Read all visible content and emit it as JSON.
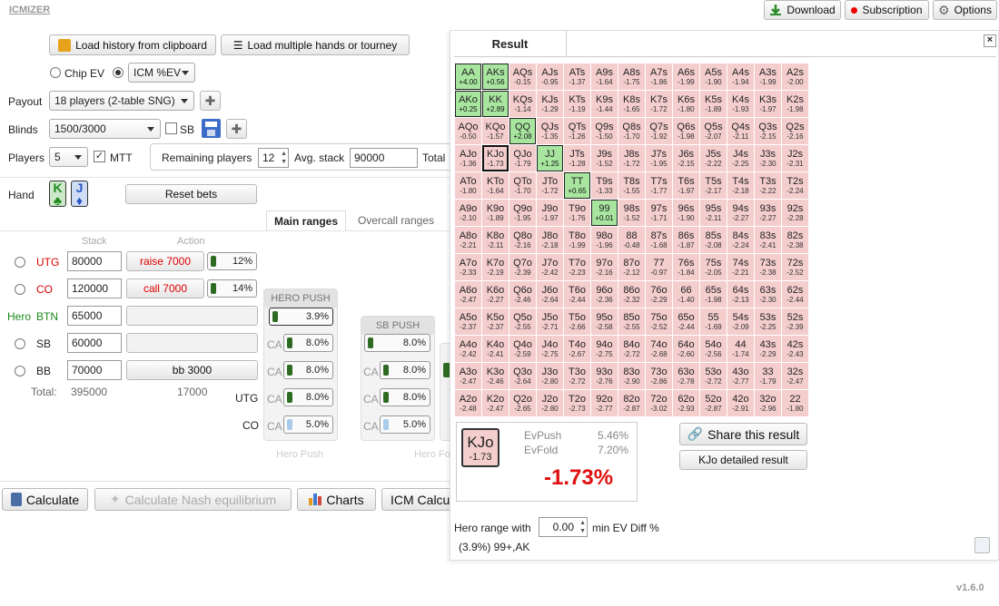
{
  "app": {
    "title": "ICMIZER",
    "version": "v1.6.0"
  },
  "topbar": {
    "download": "Download",
    "subscription": "Subscription",
    "options": "Options"
  },
  "actions": {
    "load_history": "Load history from clipboard",
    "load_multiple": "Load multiple hands or tourney"
  },
  "mode": {
    "chip_ev": "Chip EV",
    "icm_select": "ICM %EV"
  },
  "payout": {
    "label": "Payout",
    "value": "18 players (2-table SNG)"
  },
  "blinds": {
    "label": "Blinds",
    "value": "1500/3000",
    "sb_label": "SB"
  },
  "players": {
    "label": "Players",
    "value": "5",
    "mtt_label": "MTT",
    "remaining_label": "Remaining players",
    "remaining_value": "12",
    "avg_label": "Avg. stack",
    "avg_value": "90000",
    "total_label": "Total"
  },
  "hand": {
    "label": "Hand",
    "card1": "K",
    "card2": "J",
    "reset": "Reset bets"
  },
  "tabs": {
    "main": "Main ranges",
    "overcall": "Overcall ranges"
  },
  "table": {
    "stack_header": "Stack",
    "action_header": "Action",
    "rows": [
      {
        "pos": "UTG",
        "stack": "80000",
        "action": "raise 7000",
        "pct": "12%",
        "hero": ""
      },
      {
        "pos": "CO",
        "stack": "120000",
        "action": "call 7000",
        "pct": "14%",
        "hero": ""
      },
      {
        "pos": "BTN",
        "stack": "65000",
        "action": "",
        "pct": "",
        "hero": "Hero"
      },
      {
        "pos": "SB",
        "stack": "60000",
        "action": "",
        "pct": "",
        "hero": ""
      },
      {
        "pos": "BB",
        "stack": "70000",
        "action": "bb 3000",
        "pct": "",
        "hero": ""
      }
    ],
    "total_label": "Total:",
    "total_stack": "395000",
    "total_action": "17000"
  },
  "hero_push": {
    "title": "HERO PUSH",
    "value": "3.9%",
    "ca_label": "CA",
    "ca_values": [
      "8.0%",
      "8.0%",
      "8.0%",
      "5.0%"
    ],
    "footer": "Hero Push"
  },
  "sb_push": {
    "title": "SB PUSH",
    "value": "8.0%",
    "ca_label": "CA",
    "ca_values": [
      "8.0%",
      "8.0%",
      "5.0%"
    ],
    "footer": "Hero Fo"
  },
  "ca_rows": {
    "utg": "UTG",
    "co": "CO"
  },
  "bottom": {
    "calculate": "Calculate",
    "nash": "Calculate Nash equilibrium",
    "charts": "Charts",
    "icm_calc": "ICM Calcu"
  },
  "result": {
    "title": "Result",
    "hand": "KJo",
    "hand_ev": "-1.73",
    "evpush_label": "EvPush",
    "evpush_value": "5.46%",
    "evfold_label": "EvFold",
    "evfold_value": "7.20%",
    "diff": "-1.73%",
    "share": "Share this result",
    "detailed": "KJo detailed result",
    "hero_range_label": "Hero range with",
    "hero_range_value": "0.00",
    "hero_range_suffix": "min EV Diff %",
    "range_summary": "(3.9%) 99+,AK"
  },
  "grid": [
    [
      [
        "AA",
        "+4.00",
        1
      ],
      [
        "AKs",
        "+0.56",
        1
      ],
      [
        "AQs",
        "-0.15",
        0
      ],
      [
        "AJs",
        "-0.95",
        0
      ],
      [
        "ATs",
        "-1.37",
        0
      ],
      [
        "A9s",
        "-1.64",
        0
      ],
      [
        "A8s",
        "-1.75",
        0
      ],
      [
        "A7s",
        "-1.86",
        0
      ],
      [
        "A6s",
        "-1.99",
        0
      ],
      [
        "A5s",
        "-1.90",
        0
      ],
      [
        "A4s",
        "-1.94",
        0
      ],
      [
        "A3s",
        "-1.99",
        0
      ],
      [
        "A2s",
        "-2.00",
        0
      ]
    ],
    [
      [
        "AKo",
        "+0.25",
        1
      ],
      [
        "KK",
        "+2.89",
        1
      ],
      [
        "KQs",
        "-1.14",
        0
      ],
      [
        "KJs",
        "-1.29",
        0
      ],
      [
        "KTs",
        "-1.19",
        0
      ],
      [
        "K9s",
        "-1.44",
        0
      ],
      [
        "K8s",
        "-1.65",
        0
      ],
      [
        "K7s",
        "-1.72",
        0
      ],
      [
        "K6s",
        "-1.80",
        0
      ],
      [
        "K5s",
        "-1.89",
        0
      ],
      [
        "K4s",
        "-1.93",
        0
      ],
      [
        "K3s",
        "-1.97",
        0
      ],
      [
        "K2s",
        "-1.98",
        0
      ]
    ],
    [
      [
        "AQo",
        "-0.50",
        0
      ],
      [
        "KQo",
        "-1.57",
        0
      ],
      [
        "QQ",
        "+2.08",
        1
      ],
      [
        "QJs",
        "-1.35",
        0
      ],
      [
        "QTs",
        "-1.26",
        0
      ],
      [
        "Q9s",
        "-1.50",
        0
      ],
      [
        "Q8s",
        "-1.70",
        0
      ],
      [
        "Q7s",
        "-1.92",
        0
      ],
      [
        "Q6s",
        "-1.98",
        0
      ],
      [
        "Q5s",
        "-2.07",
        0
      ],
      [
        "Q4s",
        "-2.11",
        0
      ],
      [
        "Q3s",
        "-2.15",
        0
      ],
      [
        "Q2s",
        "-2.16",
        0
      ]
    ],
    [
      [
        "AJo",
        "-1.36",
        0
      ],
      [
        "KJo",
        "-1.73",
        2
      ],
      [
        "QJo",
        "-1.79",
        0
      ],
      [
        "JJ",
        "+1.25",
        1
      ],
      [
        "JTs",
        "-1.28",
        0
      ],
      [
        "J9s",
        "-1.52",
        0
      ],
      [
        "J8s",
        "-1.72",
        0
      ],
      [
        "J7s",
        "-1.95",
        0
      ],
      [
        "J6s",
        "-2.15",
        0
      ],
      [
        "J5s",
        "-2.22",
        0
      ],
      [
        "J4s",
        "-2.25",
        0
      ],
      [
        "J3s",
        "-2.30",
        0
      ],
      [
        "J2s",
        "-2.31",
        0
      ]
    ],
    [
      [
        "ATo",
        "-1.80",
        0
      ],
      [
        "KTo",
        "-1.64",
        0
      ],
      [
        "QTo",
        "-1.70",
        0
      ],
      [
        "JTo",
        "-1.72",
        0
      ],
      [
        "TT",
        "+0.65",
        1
      ],
      [
        "T9s",
        "-1.33",
        0
      ],
      [
        "T8s",
        "-1.55",
        0
      ],
      [
        "T7s",
        "-1.77",
        0
      ],
      [
        "T6s",
        "-1.97",
        0
      ],
      [
        "T5s",
        "-2.17",
        0
      ],
      [
        "T4s",
        "-2.18",
        0
      ],
      [
        "T3s",
        "-2.22",
        0
      ],
      [
        "T2s",
        "-2.24",
        0
      ]
    ],
    [
      [
        "A9o",
        "-2.10",
        0
      ],
      [
        "K9o",
        "-1.89",
        0
      ],
      [
        "Q9o",
        "-1.95",
        0
      ],
      [
        "J9o",
        "-1.97",
        0
      ],
      [
        "T9o",
        "-1.76",
        0
      ],
      [
        "99",
        "+0.01",
        1
      ],
      [
        "98s",
        "-1.52",
        0
      ],
      [
        "97s",
        "-1.71",
        0
      ],
      [
        "96s",
        "-1.90",
        0
      ],
      [
        "95s",
        "-2.11",
        0
      ],
      [
        "94s",
        "-2.27",
        0
      ],
      [
        "93s",
        "-2.27",
        0
      ],
      [
        "92s",
        "-2.28",
        0
      ]
    ],
    [
      [
        "A8o",
        "-2.21",
        0
      ],
      [
        "K8o",
        "-2.11",
        0
      ],
      [
        "Q8o",
        "-2.16",
        0
      ],
      [
        "J8o",
        "-2.18",
        0
      ],
      [
        "T8o",
        "-1.99",
        0
      ],
      [
        "98o",
        "-1.96",
        0
      ],
      [
        "88",
        "-0.48",
        0
      ],
      [
        "87s",
        "-1.68",
        0
      ],
      [
        "86s",
        "-1.87",
        0
      ],
      [
        "85s",
        "-2.08",
        0
      ],
      [
        "84s",
        "-2.24",
        0
      ],
      [
        "83s",
        "-2.41",
        0
      ],
      [
        "82s",
        "-2.38",
        0
      ]
    ],
    [
      [
        "A7o",
        "-2.33",
        0
      ],
      [
        "K7o",
        "-2.19",
        0
      ],
      [
        "Q7o",
        "-2.39",
        0
      ],
      [
        "J7o",
        "-2.42",
        0
      ],
      [
        "T7o",
        "-2.23",
        0
      ],
      [
        "97o",
        "-2.16",
        0
      ],
      [
        "87o",
        "-2.12",
        0
      ],
      [
        "77",
        "-0.97",
        0
      ],
      [
        "76s",
        "-1.84",
        0
      ],
      [
        "75s",
        "-2.05",
        0
      ],
      [
        "74s",
        "-2.21",
        0
      ],
      [
        "73s",
        "-2.38",
        0
      ],
      [
        "72s",
        "-2.52",
        0
      ]
    ],
    [
      [
        "A6o",
        "-2.47",
        0
      ],
      [
        "K6o",
        "-2.27",
        0
      ],
      [
        "Q6o",
        "-2.46",
        0
      ],
      [
        "J6o",
        "-2.64",
        0
      ],
      [
        "T6o",
        "-2.44",
        0
      ],
      [
        "96o",
        "-2.36",
        0
      ],
      [
        "86o",
        "-2.32",
        0
      ],
      [
        "76o",
        "-2.29",
        0
      ],
      [
        "66",
        "-1.40",
        0
      ],
      [
        "65s",
        "-1.98",
        0
      ],
      [
        "64s",
        "-2.13",
        0
      ],
      [
        "63s",
        "-2.30",
        0
      ],
      [
        "62s",
        "-2.44",
        0
      ]
    ],
    [
      [
        "A5o",
        "-2.37",
        0
      ],
      [
        "K5o",
        "-2.37",
        0
      ],
      [
        "Q5o",
        "-2.55",
        0
      ],
      [
        "J5o",
        "-2.71",
        0
      ],
      [
        "T5o",
        "-2.66",
        0
      ],
      [
        "95o",
        "-2.58",
        0
      ],
      [
        "85o",
        "-2.55",
        0
      ],
      [
        "75o",
        "-2.52",
        0
      ],
      [
        "65o",
        "-2.44",
        0
      ],
      [
        "55",
        "-1.69",
        0
      ],
      [
        "54s",
        "-2.09",
        0
      ],
      [
        "53s",
        "-2.25",
        0
      ],
      [
        "52s",
        "-2.39",
        0
      ]
    ],
    [
      [
        "A4o",
        "-2.42",
        0
      ],
      [
        "K4o",
        "-2.41",
        0
      ],
      [
        "Q4o",
        "-2.59",
        0
      ],
      [
        "J4o",
        "-2.75",
        0
      ],
      [
        "T4o",
        "-2.67",
        0
      ],
      [
        "94o",
        "-2.75",
        0
      ],
      [
        "84o",
        "-2.72",
        0
      ],
      [
        "74o",
        "-2.68",
        0
      ],
      [
        "64o",
        "-2.60",
        0
      ],
      [
        "54o",
        "-2.56",
        0
      ],
      [
        "44",
        "-1.74",
        0
      ],
      [
        "43s",
        "-2.29",
        0
      ],
      [
        "42s",
        "-2.43",
        0
      ]
    ],
    [
      [
        "A3o",
        "-2.47",
        0
      ],
      [
        "K3o",
        "-2.46",
        0
      ],
      [
        "Q3o",
        "-2.64",
        0
      ],
      [
        "J3o",
        "-2.80",
        0
      ],
      [
        "T3o",
        "-2.72",
        0
      ],
      [
        "93o",
        "-2.76",
        0
      ],
      [
        "83o",
        "-2.90",
        0
      ],
      [
        "73o",
        "-2.86",
        0
      ],
      [
        "63o",
        "-2.78",
        0
      ],
      [
        "53o",
        "-2.72",
        0
      ],
      [
        "43o",
        "-2.77",
        0
      ],
      [
        "33",
        "-1.79",
        0
      ],
      [
        "32s",
        "-2.47",
        0
      ]
    ],
    [
      [
        "A2o",
        "-2.48",
        0
      ],
      [
        "K2o",
        "-2.47",
        0
      ],
      [
        "Q2o",
        "-2.65",
        0
      ],
      [
        "J2o",
        "-2.80",
        0
      ],
      [
        "T2o",
        "-2.73",
        0
      ],
      [
        "92o",
        "-2.77",
        0
      ],
      [
        "82o",
        "-2.87",
        0
      ],
      [
        "72o",
        "-3.02",
        0
      ],
      [
        "62o",
        "-2.93",
        0
      ],
      [
        "52o",
        "-2.87",
        0
      ],
      [
        "42o",
        "-2.91",
        0
      ],
      [
        "32o",
        "-2.96",
        0
      ],
      [
        "22",
        "-1.80",
        0
      ]
    ]
  ]
}
